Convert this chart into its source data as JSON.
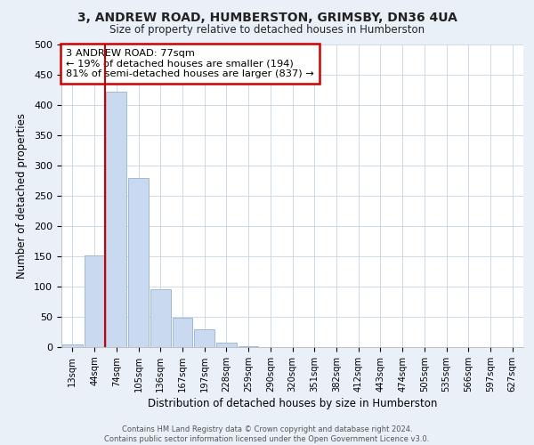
{
  "title": "3, ANDREW ROAD, HUMBERSTON, GRIMSBY, DN36 4UA",
  "subtitle": "Size of property relative to detached houses in Humberston",
  "xlabel": "Distribution of detached houses by size in Humberston",
  "ylabel": "Number of detached properties",
  "footer_line1": "Contains HM Land Registry data © Crown copyright and database right 2024.",
  "footer_line2": "Contains public sector information licensed under the Open Government Licence v3.0.",
  "bar_labels": [
    "13sqm",
    "44sqm",
    "74sqm",
    "105sqm",
    "136sqm",
    "167sqm",
    "197sqm",
    "228sqm",
    "259sqm",
    "290sqm",
    "320sqm",
    "351sqm",
    "382sqm",
    "412sqm",
    "443sqm",
    "474sqm",
    "505sqm",
    "535sqm",
    "566sqm",
    "597sqm",
    "627sqm"
  ],
  "bar_values": [
    5,
    152,
    422,
    279,
    96,
    49,
    30,
    8,
    2,
    0,
    0,
    0,
    0,
    0,
    0,
    0,
    0,
    0,
    0,
    0,
    0
  ],
  "bar_color": "#c9d9f0",
  "bar_edge_color": "#a0b8d8",
  "highlight_color": "#cc0000",
  "annotation_title": "3 ANDREW ROAD: 77sqm",
  "annotation_line1": "← 19% of detached houses are smaller (194)",
  "annotation_line2": "81% of semi-detached houses are larger (837) →",
  "annotation_box_color": "#ffffff",
  "annotation_box_edge": "#cc0000",
  "ylim": [
    0,
    500
  ],
  "yticks": [
    0,
    50,
    100,
    150,
    200,
    250,
    300,
    350,
    400,
    450,
    500
  ],
  "bg_color": "#eaf0f8",
  "plot_bg_color": "#ffffff",
  "grid_color": "#c8d4e4"
}
